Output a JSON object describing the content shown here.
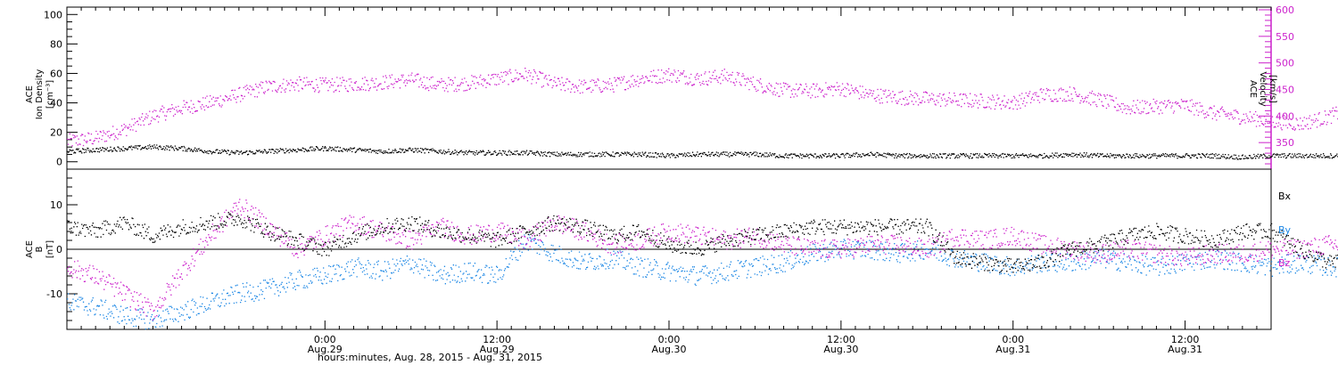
{
  "colors": {
    "black": "#000000",
    "magenta": "#cc22cc",
    "blue": "#1e88e5"
  },
  "chart_data": [
    {
      "type": "scatter",
      "panel": "top",
      "ylabel_lines": [
        "ACE",
        "Ion Density",
        "[cm⁻³]"
      ],
      "ylabel2_lines": [
        "ACE",
        "Velocity",
        "[km/s]"
      ],
      "ylim": [
        -5,
        105
      ],
      "y2lim": [
        300,
        605
      ],
      "yticks": [
        0,
        20,
        40,
        60,
        80,
        100
      ],
      "y2ticks": [
        350,
        400,
        450,
        500,
        550,
        600
      ],
      "series": [
        {
          "axis": "left",
          "color": "black",
          "x": [
            0,
            2,
            4,
            6,
            8,
            10,
            12,
            14,
            16,
            18,
            20,
            22,
            24,
            26,
            28,
            30,
            32,
            34,
            36,
            38,
            40,
            42,
            44,
            46,
            48,
            50,
            52,
            54,
            56,
            58,
            60,
            62,
            64,
            66,
            68,
            70,
            72,
            74,
            76,
            78,
            80,
            82,
            84,
            86,
            88,
            89
          ],
          "values": [
            7,
            8,
            9,
            10,
            9,
            7,
            6,
            7,
            8,
            9,
            8,
            7,
            8,
            7,
            6,
            6,
            6,
            5,
            5,
            5,
            5,
            4,
            5,
            5,
            5,
            4,
            4,
            4,
            5,
            4,
            4,
            4,
            4,
            4,
            4,
            5,
            4,
            4,
            4,
            4,
            4,
            3,
            4,
            4,
            4,
            4
          ]
        },
        {
          "axis": "right",
          "color": "magenta",
          "x": [
            0,
            2,
            4,
            6,
            8,
            10,
            12,
            14,
            16,
            18,
            20,
            22,
            24,
            26,
            28,
            30,
            32,
            34,
            36,
            38,
            40,
            42,
            44,
            46,
            48,
            50,
            52,
            54,
            56,
            58,
            60,
            62,
            64,
            66,
            68,
            70,
            72,
            74,
            76,
            78,
            80,
            82,
            84,
            86,
            88,
            89
          ],
          "values": [
            352,
            358,
            375,
            400,
            415,
            425,
            440,
            455,
            460,
            458,
            460,
            463,
            468,
            458,
            462,
            470,
            478,
            460,
            455,
            458,
            470,
            478,
            470,
            475,
            460,
            448,
            447,
            452,
            440,
            435,
            432,
            430,
            428,
            425,
            440,
            442,
            430,
            415,
            418,
            420,
            405,
            398,
            390,
            385,
            398,
            410
          ]
        }
      ]
    },
    {
      "type": "scatter",
      "panel": "bottom",
      "ylabel_lines": [
        "ACE",
        "B",
        "[nT]"
      ],
      "ylim": [
        -18,
        18
      ],
      "yticks": [
        -10,
        0,
        10
      ],
      "legend": [
        "Bx",
        "By",
        "Bz"
      ],
      "xticks": [
        {
          "x": 18,
          "label": "0:00",
          "date": "Aug.29"
        },
        {
          "x": 30,
          "label": "12:00",
          "date": "Aug.29"
        },
        {
          "x": 42,
          "label": "0:00",
          "date": "Aug.30"
        },
        {
          "x": 54,
          "label": "12:00",
          "date": "Aug.30"
        },
        {
          "x": 66,
          "label": "0:00",
          "date": "Aug.31"
        },
        {
          "x": 78,
          "label": "12:00",
          "date": "Aug.31"
        }
      ],
      "xlabel": "hours:minutes, Aug. 28, 2015 - Aug. 31, 2015",
      "xlim": [
        0,
        84
      ],
      "series": [
        {
          "name": "Bx",
          "color": "black",
          "x": [
            0,
            2,
            4,
            6,
            8,
            10,
            12,
            14,
            16,
            18,
            20,
            22,
            24,
            26,
            28,
            30,
            32,
            34,
            36,
            38,
            40,
            42,
            44,
            46,
            48,
            50,
            52,
            54,
            56,
            58,
            60,
            62,
            64,
            66,
            68,
            70,
            72,
            74,
            76,
            78,
            80,
            82,
            84,
            86,
            88,
            89
          ],
          "values": [
            5,
            4,
            6,
            3,
            5,
            6,
            7,
            4,
            2,
            0,
            3,
            5,
            6,
            4,
            3,
            2,
            4,
            6,
            5,
            3,
            4,
            1,
            0,
            2,
            3,
            4,
            5,
            5,
            5,
            5,
            5,
            -2,
            -3,
            -4,
            -3,
            0,
            1,
            3,
            4,
            3,
            2,
            4,
            4,
            0,
            -3,
            -3
          ]
        },
        {
          "name": "By",
          "color": "blue",
          "x": [
            0,
            2,
            4,
            6,
            8,
            10,
            12,
            14,
            16,
            18,
            20,
            22,
            24,
            26,
            28,
            30,
            32,
            34,
            36,
            38,
            40,
            42,
            44,
            46,
            48,
            50,
            52,
            54,
            56,
            58,
            60,
            62,
            64,
            66,
            68,
            70,
            72,
            74,
            76,
            78,
            80,
            82,
            84,
            86,
            88,
            89
          ],
          "values": [
            -12,
            -13,
            -15,
            -16,
            -14,
            -12,
            -10,
            -9,
            -7,
            -6,
            -4,
            -5,
            -3,
            -6,
            -5,
            -6,
            2,
            -1,
            -3,
            -2,
            -4,
            -5,
            -6,
            -5,
            -4,
            -3,
            -1,
            0,
            0,
            -1,
            0,
            -2,
            -3,
            -4,
            -3,
            -3,
            -2,
            -3,
            -4,
            -3,
            -2,
            -3,
            -4,
            -3,
            -4,
            -4
          ]
        },
        {
          "name": "Bz",
          "color": "magenta",
          "x": [
            0,
            2,
            4,
            6,
            8,
            10,
            12,
            14,
            16,
            18,
            20,
            22,
            24,
            26,
            28,
            30,
            32,
            34,
            36,
            38,
            40,
            42,
            44,
            46,
            48,
            50,
            52,
            54,
            56,
            58,
            60,
            62,
            64,
            66,
            68,
            70,
            72,
            74,
            76,
            78,
            80,
            82,
            84,
            86,
            88,
            89
          ],
          "values": [
            -4,
            -6,
            -10,
            -14,
            -5,
            3,
            10,
            5,
            0,
            3,
            6,
            4,
            2,
            5,
            3,
            4,
            2,
            6,
            4,
            1,
            2,
            4,
            3,
            2,
            3,
            1,
            0,
            0,
            1,
            1,
            0,
            3,
            2,
            3,
            1,
            0,
            -1,
            0,
            -1,
            -2,
            -1,
            -1,
            0,
            0,
            1,
            1
          ]
        }
      ]
    }
  ]
}
